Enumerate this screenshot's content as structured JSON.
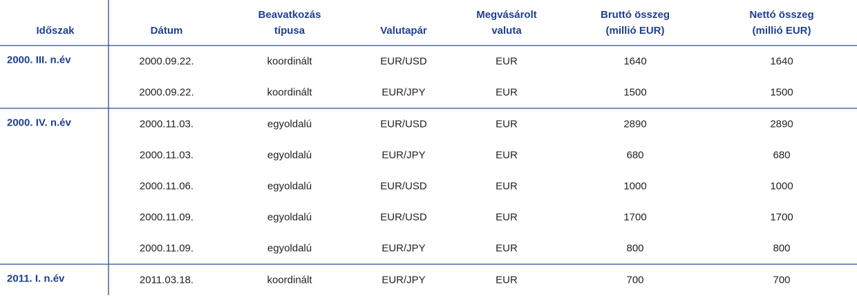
{
  "table": {
    "header": [
      [
        "Időszak"
      ],
      [
        "Dátum"
      ],
      [
        "Beavatkozás",
        "típusa"
      ],
      [
        "Valutapár"
      ],
      [
        "Megvásárolt",
        "valuta"
      ],
      [
        "Bruttó összeg",
        "(millió EUR)"
      ],
      [
        "Nettó összeg",
        "(millió EUR)"
      ]
    ],
    "groups": [
      {
        "period": "2000. III. n.év",
        "rows": [
          [
            "2000.09.22.",
            "koordinált",
            "EUR/USD",
            "EUR",
            1640,
            1640
          ],
          [
            "2000.09.22.",
            "koordinált",
            "EUR/JPY",
            "EUR",
            1500,
            1500
          ]
        ]
      },
      {
        "period": "2000. IV. n.év",
        "rows": [
          [
            "2000.11.03.",
            "egyoldalú",
            "EUR/USD",
            "EUR",
            2890,
            2890
          ],
          [
            "2000.11.03.",
            "egyoldalú",
            "EUR/JPY",
            "EUR",
            680,
            680
          ],
          [
            "2000.11.06.",
            "egyoldalú",
            "EUR/USD",
            "EUR",
            1000,
            1000
          ],
          [
            "2000.11.09.",
            "egyoldalú",
            "EUR/USD",
            "EUR",
            1700,
            1700
          ],
          [
            "2000.11.09.",
            "egyoldalú",
            "EUR/JPY",
            "EUR",
            800,
            800
          ]
        ]
      },
      {
        "period": "2011. I. n.év",
        "rows": [
          [
            "2011.03.18.",
            "koordinált",
            "EUR/JPY",
            "EUR",
            700,
            700
          ]
        ]
      }
    ]
  }
}
